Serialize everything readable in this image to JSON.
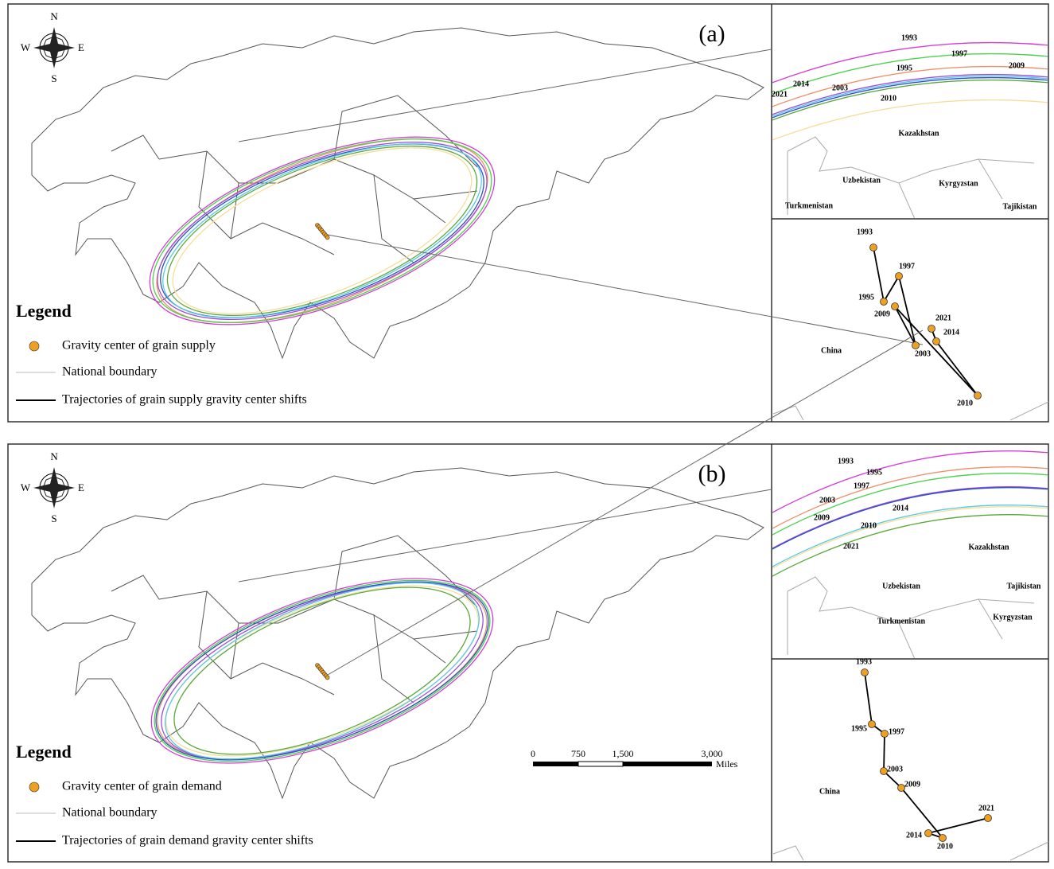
{
  "panels": [
    {
      "label": "(a)",
      "compass": {
        "n": "N",
        "s": "S",
        "e": "E",
        "w": "W"
      },
      "legend": {
        "title": "Legend",
        "items": [
          "Gravity center of grain supply",
          "National boundary",
          "Trajectories of grain supply gravity center shifts"
        ]
      },
      "ellipse_zoom": {
        "years": [
          "1993",
          "1995",
          "1997",
          "2003",
          "2009",
          "2010",
          "2014",
          "2021"
        ],
        "countries": [
          "Kazakhstan",
          "Uzbekistan",
          "Kyrgyzstan",
          "Turkmenistan",
          "Tajikistan"
        ]
      },
      "trajectory": {
        "years": [
          "1993",
          "1995",
          "1997",
          "2003",
          "2009",
          "2010",
          "2014",
          "2021"
        ],
        "country": "China"
      }
    },
    {
      "label": "(b)",
      "compass": {
        "n": "N",
        "s": "S",
        "e": "E",
        "w": "W"
      },
      "legend": {
        "title": "Legend",
        "items": [
          "Gravity center of grain demand",
          "National boundary",
          "Trajectories of grain demand gravity center shifts"
        ]
      },
      "ellipse_zoom": {
        "years": [
          "1993",
          "1995",
          "1997",
          "2003",
          "2009",
          "2010",
          "2014",
          "2021"
        ],
        "countries": [
          "Kazakhstan",
          "Uzbekistan",
          "Tajikistan",
          "Kyrgyzstan",
          "Turkmenistan"
        ]
      },
      "trajectory": {
        "years": [
          "1993",
          "1995",
          "1997",
          "2003",
          "2009",
          "2010",
          "2014",
          "2021"
        ],
        "country": "China"
      }
    }
  ],
  "scale_bar": {
    "ticks": [
      "0",
      "750",
      "1,500",
      "3,000"
    ],
    "unit": "Miles"
  }
}
